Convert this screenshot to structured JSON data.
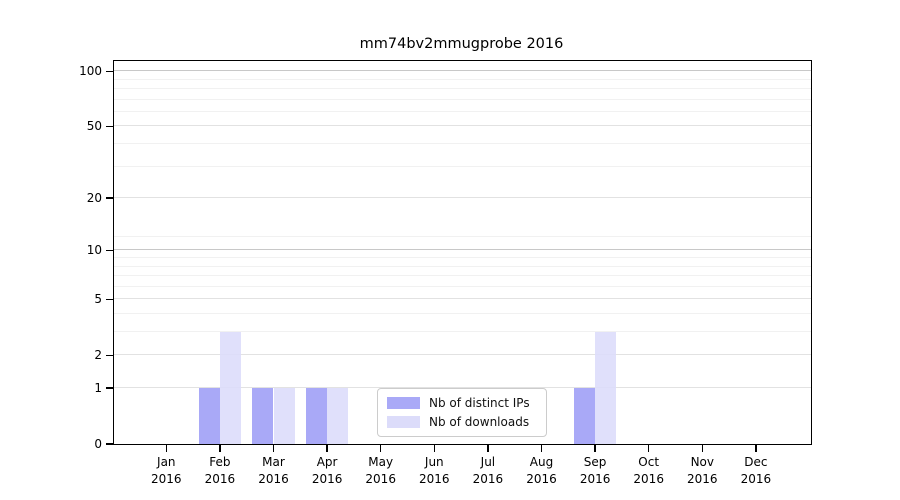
{
  "chart_data": {
    "type": "bar",
    "title": "mm74bv2mmugprobe 2016",
    "categories": [
      "Jan",
      "Feb",
      "Mar",
      "Apr",
      "May",
      "Jun",
      "Jul",
      "Aug",
      "Sep",
      "Oct",
      "Nov",
      "Dec"
    ],
    "year_label": "2016",
    "series": [
      {
        "name": "Nb of distinct IPs",
        "color": "#a9a9f7",
        "values": [
          0,
          1,
          1,
          1,
          0,
          0,
          0,
          0,
          1,
          0,
          0,
          0
        ]
      },
      {
        "name": "Nb of downloads",
        "color": "#dcdcfa",
        "values": [
          0,
          3,
          1,
          1,
          0,
          0,
          0,
          0,
          3,
          0,
          0,
          0
        ]
      }
    ],
    "xlabel": "",
    "ylabel": "",
    "yscale": "log1p",
    "ylim": [
      0,
      113.6
    ],
    "yticks": [
      0,
      1,
      2,
      5,
      10,
      20,
      50,
      100
    ],
    "yticks_emphasized": [
      10,
      100
    ],
    "minor_gridlines": [
      3,
      4,
      6,
      7,
      8,
      9,
      12,
      30,
      40,
      60,
      70,
      80,
      90
    ],
    "grid": true,
    "legend_position": "lower center"
  }
}
